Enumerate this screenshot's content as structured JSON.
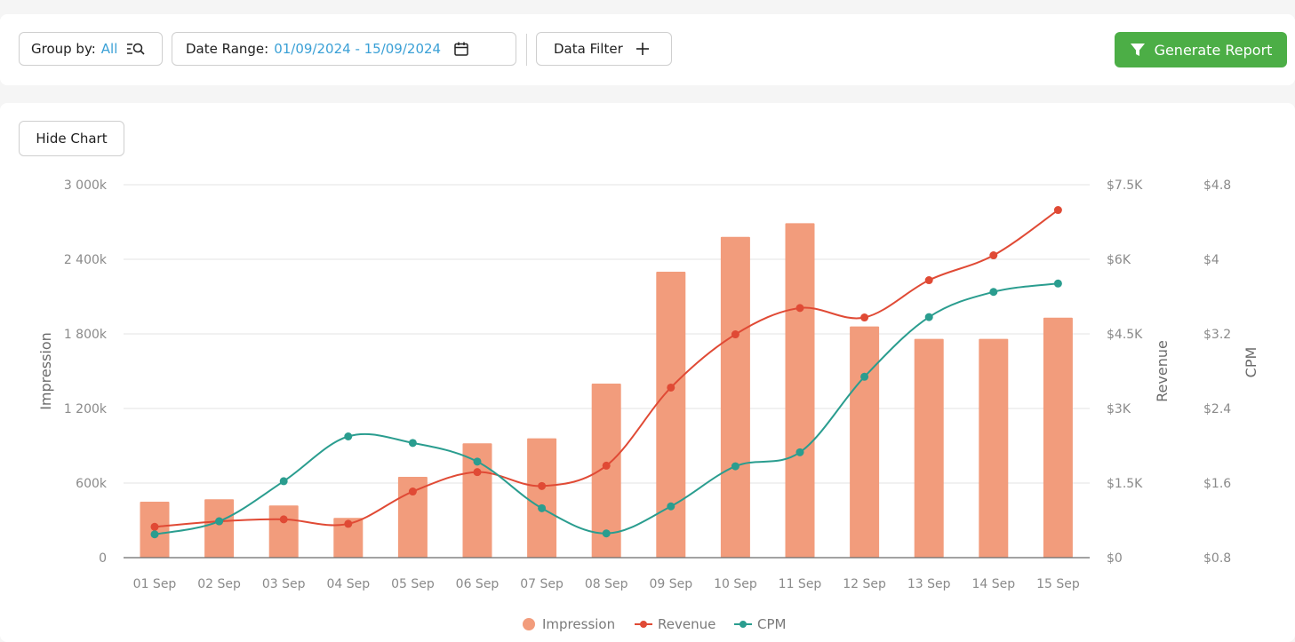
{
  "toolbar": {
    "group_by_label": "Group by:",
    "group_by_value": "All",
    "date_range_label": "Date Range:",
    "date_range_value": "01/09/2024 - 15/09/2024",
    "data_filter_label": "Data Filter",
    "generate_report_label": "Generate Report"
  },
  "panel": {
    "hide_chart_label": "Hide Chart"
  },
  "colors": {
    "impression": "#f29c7c",
    "revenue": "#e04a35",
    "cpm": "#2a9d8f",
    "accent_blue": "#3aa0d6",
    "button_green": "#4cae46"
  },
  "chart_data": {
    "type": "bar",
    "categories": [
      "01 Sep",
      "02 Sep",
      "03 Sep",
      "04 Sep",
      "05 Sep",
      "06 Sep",
      "07 Sep",
      "08 Sep",
      "09 Sep",
      "10 Sep",
      "11 Sep",
      "12 Sep",
      "13 Sep",
      "14 Sep",
      "15 Sep"
    ],
    "series": [
      {
        "name": "Impression",
        "type": "bar",
        "axis": "impression",
        "values": [
          450,
          470,
          420,
          320,
          650,
          920,
          960,
          1400,
          2300,
          2580,
          2690,
          1860,
          1760,
          1760,
          1930
        ]
      },
      {
        "name": "Revenue",
        "type": "line",
        "axis": "revenue",
        "values": [
          620,
          730,
          770,
          680,
          1330,
          1720,
          1440,
          1850,
          3420,
          4490,
          5020,
          4830,
          5580,
          6080,
          6990
        ]
      },
      {
        "name": "CPM",
        "type": "line",
        "axis": "cpm",
        "values": [
          1.05,
          1.19,
          1.62,
          2.1,
          2.03,
          1.83,
          1.33,
          1.06,
          1.35,
          1.78,
          1.93,
          2.74,
          3.38,
          3.65,
          3.74
        ]
      }
    ],
    "axes": {
      "impression": {
        "label": "Impression",
        "min": 0,
        "max": 3000,
        "ticks": [
          "0",
          "600k",
          "1 200k",
          "1 800k",
          "2 400k",
          "3 000k"
        ]
      },
      "revenue": {
        "label": "Revenue",
        "min": 0,
        "max": 7500,
        "ticks": [
          "$0",
          "$1.5K",
          "$3K",
          "$4.5K",
          "$6K",
          "$7.5K"
        ]
      },
      "cpm": {
        "label": "CPM",
        "min": 0.8,
        "max": 4.8,
        "ticks": [
          "$0.8",
          "$1.6",
          "$2.4",
          "$3.2",
          "$4",
          "$4.8"
        ]
      }
    },
    "grid": true,
    "legend_position": "bottom-center"
  }
}
